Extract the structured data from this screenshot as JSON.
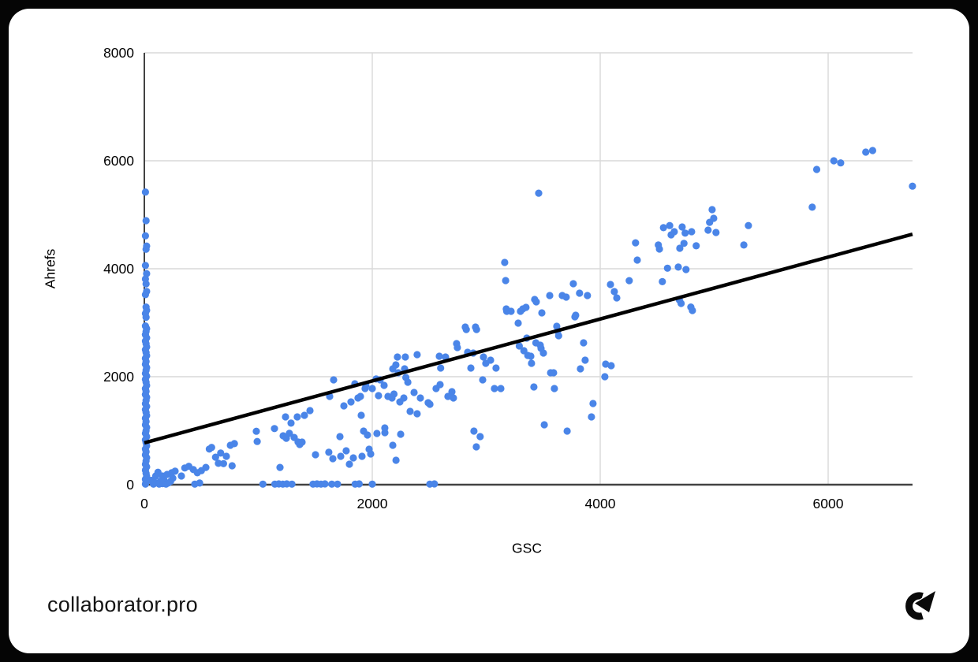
{
  "branding": {
    "site": "collaborator.pro",
    "logo": "collaborator-c-arrow"
  },
  "chart_data": {
    "type": "scatter",
    "title": "",
    "xlabel": "GSC",
    "ylabel": "Ahrefs",
    "xlim": [
      0,
      6740
    ],
    "ylim": [
      0,
      8000
    ],
    "x_ticks": [
      0,
      2000,
      4000,
      6000
    ],
    "y_ticks": [
      0,
      2000,
      4000,
      6000,
      8000
    ],
    "grid": true,
    "grid_color": "#d9d9d9",
    "axis_color": "#424242",
    "point_color": "#4a85e8",
    "legend": "none",
    "trendline": {
      "color": "#000000",
      "x1": 0,
      "y1": 775,
      "x2": 6740,
      "y2": 4640
    },
    "points": [
      [
        10,
        5420
      ],
      [
        15,
        4890
      ],
      [
        10,
        4610
      ],
      [
        20,
        4420
      ],
      [
        15,
        4360
      ],
      [
        10,
        4060
      ],
      [
        20,
        3910
      ],
      [
        10,
        3810
      ],
      [
        15,
        3720
      ],
      [
        20,
        3580
      ],
      [
        10,
        3520
      ],
      [
        15,
        3290
      ],
      [
        20,
        3230
      ],
      [
        10,
        3170
      ],
      [
        15,
        3100
      ],
      [
        10,
        2940
      ],
      [
        20,
        2890
      ],
      [
        15,
        2840
      ],
      [
        10,
        2780
      ],
      [
        20,
        2720
      ],
      [
        10,
        2660
      ],
      [
        15,
        2610
      ],
      [
        20,
        2550
      ],
      [
        10,
        2500
      ],
      [
        15,
        2450
      ],
      [
        20,
        2390
      ],
      [
        10,
        2340
      ],
      [
        15,
        2280
      ],
      [
        10,
        2230
      ],
      [
        20,
        2170
      ],
      [
        15,
        2120
      ],
      [
        10,
        2060
      ],
      [
        20,
        2010
      ],
      [
        10,
        1950
      ],
      [
        15,
        1900
      ],
      [
        20,
        1840
      ],
      [
        10,
        1780
      ],
      [
        15,
        1730
      ],
      [
        10,
        1670
      ],
      [
        20,
        1620
      ],
      [
        15,
        1560
      ],
      [
        10,
        1500
      ],
      [
        20,
        1450
      ],
      [
        10,
        1390
      ],
      [
        15,
        1340
      ],
      [
        20,
        1280
      ],
      [
        10,
        1230
      ],
      [
        15,
        1170
      ],
      [
        10,
        1110
      ],
      [
        20,
        1060
      ],
      [
        15,
        1000
      ],
      [
        10,
        950
      ],
      [
        20,
        890
      ],
      [
        10,
        830
      ],
      [
        15,
        780
      ],
      [
        20,
        720
      ],
      [
        10,
        660
      ],
      [
        15,
        610
      ],
      [
        10,
        550
      ],
      [
        20,
        500
      ],
      [
        15,
        440
      ],
      [
        10,
        380
      ],
      [
        20,
        330
      ],
      [
        10,
        270
      ],
      [
        15,
        210
      ],
      [
        20,
        160
      ],
      [
        10,
        100
      ],
      [
        15,
        50
      ],
      [
        10,
        10
      ],
      [
        60,
        80
      ],
      [
        80,
        10
      ],
      [
        90,
        40
      ],
      [
        100,
        160
      ],
      [
        120,
        230
      ],
      [
        130,
        10
      ],
      [
        140,
        60
      ],
      [
        160,
        160
      ],
      [
        160,
        20
      ],
      [
        170,
        90
      ],
      [
        190,
        10
      ],
      [
        200,
        190
      ],
      [
        210,
        30
      ],
      [
        230,
        60
      ],
      [
        240,
        220
      ],
      [
        250,
        120
      ],
      [
        270,
        250
      ],
      [
        325,
        160
      ],
      [
        355,
        310
      ],
      [
        390,
        340
      ],
      [
        430,
        280
      ],
      [
        443,
        10
      ],
      [
        465,
        220
      ],
      [
        485,
        30
      ],
      [
        500,
        260
      ],
      [
        540,
        320
      ],
      [
        570,
        660
      ],
      [
        590,
        690
      ],
      [
        625,
        510
      ],
      [
        650,
        395
      ],
      [
        670,
        585
      ],
      [
        695,
        390
      ],
      [
        720,
        525
      ],
      [
        755,
        730
      ],
      [
        770,
        350
      ],
      [
        790,
        760
      ],
      [
        983,
        990
      ],
      [
        990,
        800
      ],
      [
        1040,
        10
      ],
      [
        1142,
        1040
      ],
      [
        1145,
        10
      ],
      [
        1180,
        15
      ],
      [
        1190,
        320
      ],
      [
        1215,
        10
      ],
      [
        1218,
        905
      ],
      [
        1239,
        1256
      ],
      [
        1246,
        860
      ],
      [
        1250,
        15
      ],
      [
        1273,
        950
      ],
      [
        1287,
        1140
      ],
      [
        1295,
        10
      ],
      [
        1315,
        875
      ],
      [
        1342,
        1256
      ],
      [
        1349,
        790
      ],
      [
        1363,
        745
      ],
      [
        1384,
        788
      ],
      [
        1405,
        1285
      ],
      [
        1453,
        1372
      ],
      [
        1480,
        10
      ],
      [
        1502,
        555
      ],
      [
        1515,
        15
      ],
      [
        1550,
        10
      ],
      [
        1585,
        15
      ],
      [
        1619,
        600
      ],
      [
        1626,
        1635
      ],
      [
        1645,
        10
      ],
      [
        1654,
        482
      ],
      [
        1661,
        1942
      ],
      [
        1695,
        10
      ],
      [
        1716,
        890
      ],
      [
        1723,
        526
      ],
      [
        1751,
        1460
      ],
      [
        1771,
        628
      ],
      [
        1799,
        380
      ],
      [
        1813,
        1533
      ],
      [
        1834,
        497
      ],
      [
        1847,
        1869
      ],
      [
        1850,
        10
      ],
      [
        1875,
        1606
      ],
      [
        1885,
        15
      ],
      [
        1896,
        1635
      ],
      [
        1903,
        1285
      ],
      [
        1910,
        526
      ],
      [
        1924,
        993
      ],
      [
        1937,
        1781
      ],
      [
        1944,
        1840
      ],
      [
        1958,
        920
      ],
      [
        1972,
        657
      ],
      [
        1986,
        569
      ],
      [
        2000,
        1781
      ],
      [
        2000,
        10
      ],
      [
        2034,
        1957
      ],
      [
        2041,
        949
      ],
      [
        2055,
        1650
      ],
      [
        2069,
        1942
      ],
      [
        2104,
        1840
      ],
      [
        2110,
        1051
      ],
      [
        2111,
        964
      ],
      [
        2138,
        1635
      ],
      [
        2173,
        1606
      ],
      [
        2180,
        730
      ],
      [
        2180,
        2146
      ],
      [
        2190,
        1679
      ],
      [
        2207,
        2219
      ],
      [
        2208,
        453
      ],
      [
        2221,
        2365
      ],
      [
        2228,
        2073
      ],
      [
        2242,
        1533
      ],
      [
        2249,
        934
      ],
      [
        2277,
        1606
      ],
      [
        2284,
        2146
      ],
      [
        2290,
        2365
      ],
      [
        2295,
        1986
      ],
      [
        2312,
        1898
      ],
      [
        2332,
        1358
      ],
      [
        2367,
        1708
      ],
      [
        2394,
        2409
      ],
      [
        2394,
        1314
      ],
      [
        2422,
        1606
      ],
      [
        2491,
        1518
      ],
      [
        2505,
        10
      ],
      [
        2506,
        1489
      ],
      [
        2545,
        15
      ],
      [
        2560,
        1781
      ],
      [
        2588,
        2380
      ],
      [
        2595,
        1854
      ],
      [
        2600,
        2161
      ],
      [
        2643,
        2365
      ],
      [
        2664,
        1635
      ],
      [
        2692,
        1650
      ],
      [
        2699,
        1723
      ],
      [
        2712,
        1606
      ],
      [
        2740,
        2613
      ],
      [
        2747,
        2540
      ],
      [
        2816,
        2920
      ],
      [
        2825,
        2875
      ],
      [
        2837,
        2453
      ],
      [
        2865,
        2161
      ],
      [
        2886,
        2438
      ],
      [
        2892,
        993
      ],
      [
        2906,
        2920
      ],
      [
        2913,
        701
      ],
      [
        2915,
        2875
      ],
      [
        2947,
        891
      ],
      [
        2969,
        1942
      ],
      [
        2976,
        2365
      ],
      [
        2996,
        2248
      ],
      [
        3038,
        2307
      ],
      [
        3072,
        1781
      ],
      [
        3086,
        2161
      ],
      [
        3128,
        1781
      ],
      [
        3162,
        4117
      ],
      [
        3170,
        3781
      ],
      [
        3180,
        3212
      ],
      [
        3176,
        3256
      ],
      [
        3218,
        3212
      ],
      [
        3280,
        2993
      ],
      [
        3290,
        2569
      ],
      [
        3300,
        3212
      ],
      [
        3321,
        3256
      ],
      [
        3330,
        2482
      ],
      [
        3349,
        3285
      ],
      [
        3356,
        2716
      ],
      [
        3365,
        2394
      ],
      [
        3391,
        2380
      ],
      [
        3397,
        2248
      ],
      [
        3418,
        1810
      ],
      [
        3425,
        3431
      ],
      [
        3435,
        2628
      ],
      [
        3439,
        3387
      ],
      [
        3460,
        5400
      ],
      [
        3474,
        2584
      ],
      [
        3481,
        2526
      ],
      [
        3488,
        3183
      ],
      [
        3502,
        2438
      ],
      [
        3509,
        1110
      ],
      [
        3557,
        3504
      ],
      [
        3565,
        2073
      ],
      [
        3591,
        2073
      ],
      [
        3598,
        1781
      ],
      [
        3619,
        2934
      ],
      [
        3626,
        2847
      ],
      [
        3635,
        2759
      ],
      [
        3667,
        3504
      ],
      [
        3702,
        3475
      ],
      [
        3710,
        993
      ],
      [
        3764,
        3723
      ],
      [
        3778,
        3110
      ],
      [
        3785,
        3139
      ],
      [
        3819,
        3548
      ],
      [
        3826,
        2146
      ],
      [
        3854,
        2628
      ],
      [
        3868,
        2307
      ],
      [
        3888,
        3504
      ],
      [
        3923,
        1256
      ],
      [
        3937,
        1504
      ],
      [
        4041,
        2000
      ],
      [
        4048,
        2234
      ],
      [
        4090,
        3708
      ],
      [
        4096,
        2204
      ],
      [
        4124,
        3577
      ],
      [
        4145,
        3460
      ],
      [
        4255,
        3780
      ],
      [
        4310,
        4480
      ],
      [
        4325,
        4160
      ],
      [
        4510,
        4440
      ],
      [
        4520,
        4365
      ],
      [
        4545,
        3760
      ],
      [
        4555,
        4760
      ],
      [
        4590,
        4010
      ],
      [
        4610,
        4800
      ],
      [
        4622,
        4628
      ],
      [
        4650,
        4686
      ],
      [
        4685,
        4030
      ],
      [
        4695,
        3420
      ],
      [
        4698,
        4380
      ],
      [
        4710,
        3358
      ],
      [
        4719,
        4774
      ],
      [
        4735,
        4470
      ],
      [
        4745,
        4660
      ],
      [
        4753,
        3985
      ],
      [
        4795,
        3290
      ],
      [
        4802,
        4686
      ],
      [
        4809,
        3226
      ],
      [
        4842,
        4425
      ],
      [
        4947,
        4715
      ],
      [
        4960,
        4860
      ],
      [
        4982,
        5095
      ],
      [
        4996,
        4935
      ],
      [
        5016,
        4672
      ],
      [
        5260,
        4440
      ],
      [
        5300,
        4800
      ],
      [
        5860,
        5140
      ],
      [
        5900,
        5840
      ],
      [
        6050,
        6000
      ],
      [
        6110,
        5960
      ],
      [
        6330,
        6160
      ],
      [
        6390,
        6190
      ],
      [
        6740,
        5530
      ]
    ]
  }
}
